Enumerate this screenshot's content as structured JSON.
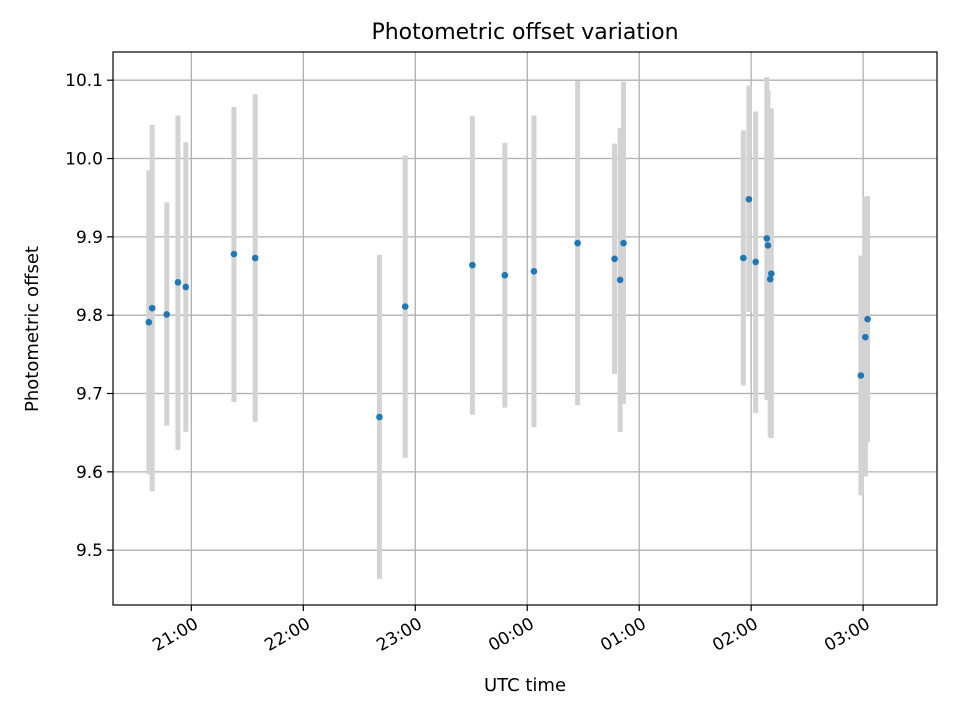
{
  "chart_data": {
    "type": "scatter",
    "title": "Photometric offset variation",
    "xlabel": "UTC time",
    "ylabel": "Photometric offset",
    "x_unit": "hours",
    "xlim": [
      20.3,
      27.66
    ],
    "ylim": [
      9.43,
      10.136
    ],
    "grid": true,
    "x_ticks": [
      {
        "value": 21,
        "label": "21:00"
      },
      {
        "value": 22,
        "label": "22:00"
      },
      {
        "value": 23,
        "label": "23:00"
      },
      {
        "value": 24,
        "label": "00:00"
      },
      {
        "value": 25,
        "label": "01:00"
      },
      {
        "value": 26,
        "label": "02:00"
      },
      {
        "value": 27,
        "label": "03:00"
      }
    ],
    "y_ticks": [
      {
        "value": 9.5,
        "label": "9.5"
      },
      {
        "value": 9.6,
        "label": "9.6"
      },
      {
        "value": 9.7,
        "label": "9.7"
      },
      {
        "value": 9.8,
        "label": "9.8"
      },
      {
        "value": 9.9,
        "label": "9.9"
      },
      {
        "value": 10.0,
        "label": "10.0"
      },
      {
        "value": 10.1,
        "label": "10.1"
      }
    ],
    "colors": {
      "point": "#1f77b4",
      "errorbar": "#d3d3d3",
      "grid": "#b0b0b0"
    },
    "points": [
      {
        "x": 20.62,
        "y": 9.791,
        "err_low": 9.597,
        "err_high": 9.985
      },
      {
        "x": 20.65,
        "y": 9.809,
        "err_low": 9.575,
        "err_high": 10.043
      },
      {
        "x": 20.78,
        "y": 9.801,
        "err_low": 9.659,
        "err_high": 9.944
      },
      {
        "x": 20.88,
        "y": 9.842,
        "err_low": 9.628,
        "err_high": 10.055
      },
      {
        "x": 20.95,
        "y": 9.836,
        "err_low": 9.651,
        "err_high": 10.021
      },
      {
        "x": 21.38,
        "y": 9.878,
        "err_low": 9.689,
        "err_high": 10.066
      },
      {
        "x": 21.57,
        "y": 9.873,
        "err_low": 9.664,
        "err_high": 10.082
      },
      {
        "x": 22.68,
        "y": 9.67,
        "err_low": 9.463,
        "err_high": 9.877
      },
      {
        "x": 22.91,
        "y": 9.811,
        "err_low": 9.618,
        "err_high": 10.004
      },
      {
        "x": 23.51,
        "y": 9.864,
        "err_low": 9.673,
        "err_high": 10.054
      },
      {
        "x": 23.8,
        "y": 9.851,
        "err_low": 9.682,
        "err_high": 10.02
      },
      {
        "x": 24.06,
        "y": 9.856,
        "err_low": 9.657,
        "err_high": 10.055
      },
      {
        "x": 24.45,
        "y": 9.892,
        "err_low": 9.685,
        "err_high": 10.099
      },
      {
        "x": 24.78,
        "y": 9.872,
        "err_low": 9.725,
        "err_high": 10.019
      },
      {
        "x": 24.83,
        "y": 9.845,
        "err_low": 9.651,
        "err_high": 10.039
      },
      {
        "x": 24.86,
        "y": 9.892,
        "err_low": 9.687,
        "err_high": 10.098
      },
      {
        "x": 25.93,
        "y": 9.873,
        "err_low": 9.71,
        "err_high": 10.036
      },
      {
        "x": 25.98,
        "y": 9.948,
        "err_low": 9.804,
        "err_high": 10.093
      },
      {
        "x": 26.04,
        "y": 9.868,
        "err_low": 9.675,
        "err_high": 10.06
      },
      {
        "x": 26.14,
        "y": 9.898,
        "err_low": 9.692,
        "err_high": 10.104
      },
      {
        "x": 26.15,
        "y": 9.889,
        "err_low": 9.692,
        "err_high": 10.087
      },
      {
        "x": 26.17,
        "y": 9.846,
        "err_low": 9.644,
        "err_high": 10.049
      },
      {
        "x": 26.18,
        "y": 9.853,
        "err_low": 9.643,
        "err_high": 10.064
      },
      {
        "x": 26.98,
        "y": 9.723,
        "err_low": 9.57,
        "err_high": 9.876
      },
      {
        "x": 27.02,
        "y": 9.772,
        "err_low": 9.594,
        "err_high": 9.951
      },
      {
        "x": 27.04,
        "y": 9.795,
        "err_low": 9.638,
        "err_high": 9.952
      }
    ]
  }
}
